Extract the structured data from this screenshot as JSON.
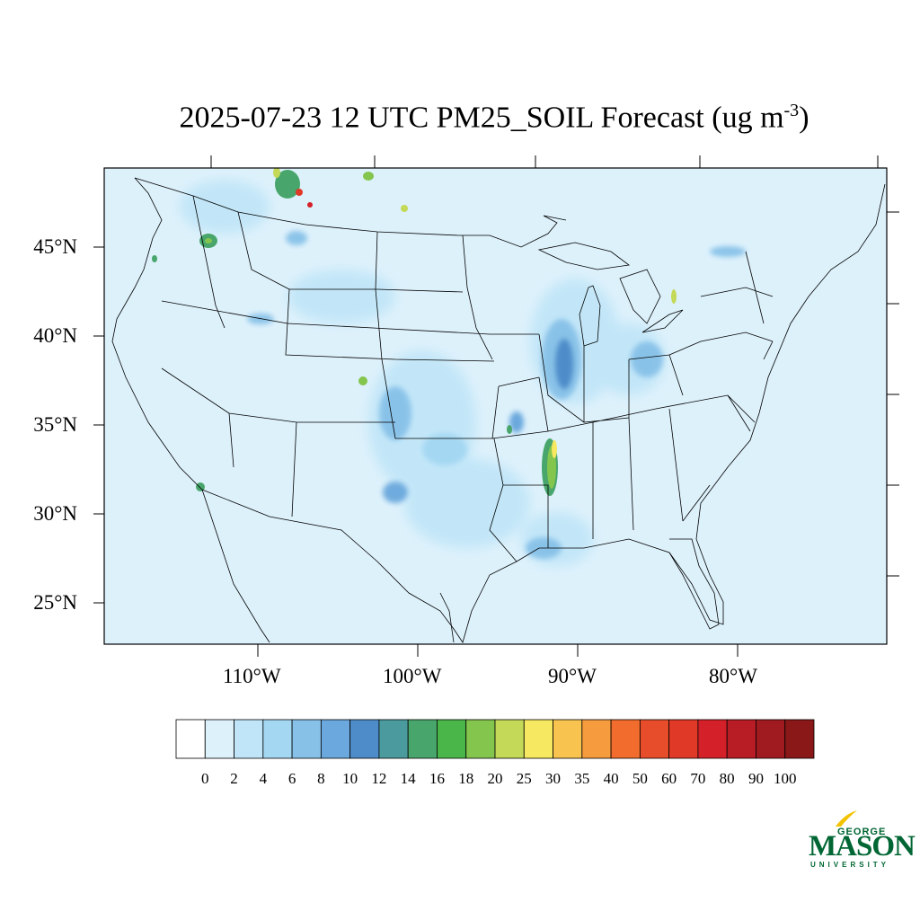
{
  "title": {
    "text": "2025-07-23 12 UTC PM25_SOIL Forecast (ug m",
    "superscript": "-3",
    "suffix": ")"
  },
  "map": {
    "background_color": "#ddf1fb",
    "projection": "lambert-conformal-conus",
    "lat_labels": [
      "45°N",
      "40°N",
      "35°N",
      "30°N",
      "25°N"
    ],
    "lon_labels": [
      "110°W",
      "100°W",
      "90°W",
      "80°W"
    ],
    "features": [
      {
        "name": "upper-mississippi-valley",
        "level": "8-12"
      },
      {
        "name": "lower-mississippi-arkansas-hotspot",
        "level": "20-35"
      },
      {
        "name": "montana-canada-border-hotspots",
        "level": "80-100"
      },
      {
        "name": "southern-plains-texas-oklahoma",
        "level": "4-10"
      },
      {
        "name": "idaho-washington-cluster",
        "level": "14-20"
      }
    ]
  },
  "colorbar": {
    "labels": [
      "0",
      "2",
      "4",
      "6",
      "8",
      "10",
      "12",
      "14",
      "16",
      "18",
      "20",
      "25",
      "30",
      "35",
      "40",
      "50",
      "60",
      "70",
      "80",
      "90",
      "100"
    ],
    "colors": [
      "#ffffff",
      "#ddf1fb",
      "#c0e5f8",
      "#a3d7f2",
      "#87c1e8",
      "#6aa8dd",
      "#4d8cc9",
      "#4b9b9e",
      "#48a66c",
      "#4ab64a",
      "#84c54e",
      "#c4d957",
      "#f6e860",
      "#f8c44f",
      "#f69b3e",
      "#f26d2d",
      "#e74d2a",
      "#e03927",
      "#d42028",
      "#b81c25",
      "#a01b1f",
      "#8a1818"
    ]
  },
  "logo": {
    "top": "GEORGE",
    "main": "MASON",
    "bottom": "UNIVERSITY"
  }
}
